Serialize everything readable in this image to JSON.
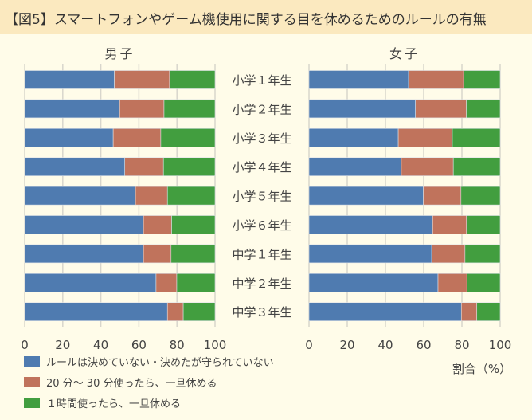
{
  "title": "【図5】スマートフォンやゲーム機使用に関する目を休めるためのルールの有無",
  "chart_data": [
    {
      "type": "bar",
      "orientation": "horizontal",
      "stacked": true,
      "title": "男子",
      "categories": [
        "小学１年生",
        "小学２年生",
        "小学３年生",
        "小学４年生",
        "小学５年生",
        "小学６年生",
        "中学１年生",
        "中学２年生",
        "中学３年生"
      ],
      "series": [
        {
          "name": "ルールは決めていない・決めたが守られていない",
          "color": "#4f7bb0",
          "values": [
            47.1,
            49.9,
            46.5,
            52.6,
            58.2,
            62.4,
            62.4,
            69.0,
            75.0
          ]
        },
        {
          "name": "20 分～ 30 分使ったら、一旦休める",
          "color": "#c0735c",
          "values": [
            29.0,
            23.3,
            25.0,
            20.3,
            16.8,
            14.8,
            14.5,
            10.9,
            8.3
          ]
        },
        {
          "name": "１時間使ったら、一旦休める",
          "color": "#429e3f",
          "values": [
            23.9,
            26.8,
            28.5,
            27.1,
            25.0,
            22.8,
            23.1,
            20.1,
            16.7
          ]
        }
      ],
      "xlim": [
        0,
        100
      ],
      "xticks": [
        "0",
        "20",
        "40",
        "60",
        "80",
        "100"
      ],
      "grid": true
    },
    {
      "type": "bar",
      "orientation": "horizontal",
      "stacked": true,
      "title": "女子",
      "categories": [
        "小学１年生",
        "小学２年生",
        "小学３年生",
        "小学４年生",
        "小学５年生",
        "小学６年生",
        "中学１年生",
        "中学２年生",
        "中学３年生"
      ],
      "series": [
        {
          "name": "ルールは決めていない・決めたが守られていない",
          "color": "#4f7bb0",
          "values": [
            52.1,
            55.7,
            46.7,
            48.3,
            59.8,
            64.7,
            64.2,
            67.5,
            79.7
          ]
        },
        {
          "name": "20 分～ 30 分使ったら、一旦休める",
          "color": "#c0735c",
          "values": [
            28.8,
            26.6,
            28.3,
            27.2,
            19.7,
            17.7,
            17.4,
            15.1,
            8.1
          ]
        },
        {
          "name": "１時間使ったら、一旦休める",
          "color": "#429e3f",
          "values": [
            19.1,
            17.7,
            25.0,
            24.5,
            20.5,
            17.6,
            18.4,
            17.4,
            12.2
          ]
        }
      ],
      "xlim": [
        0,
        100
      ],
      "xticks": [
        "0",
        "20",
        "40",
        "60",
        "80",
        "100"
      ],
      "xlabel": "割合（%）",
      "grid": true
    }
  ],
  "legend": [
    {
      "label": "ルールは決めていない・決めたが守られていない",
      "color": "#4f7bb0"
    },
    {
      "label": "20 分～ 30 分使ったら、一旦休める",
      "color": "#c0735c"
    },
    {
      "label": "１時間使ったら、一旦休める",
      "color": "#429e3f"
    }
  ],
  "legend_position": "bottom-left"
}
